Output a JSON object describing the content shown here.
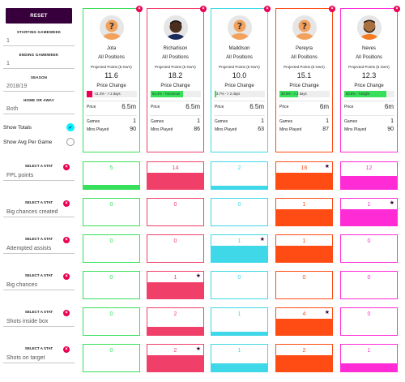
{
  "sidebar": {
    "reset_label": "RESET",
    "starting_gw_label": "STARTING GAMEWEEK",
    "starting_gw_value": "1",
    "ending_gw_label": "ENDING GAMEWEEK",
    "ending_gw_value": "1",
    "season_label": "SEASON",
    "season_value": "2018/19",
    "home_away_label": "HOME OR AWAY",
    "home_away_value": "Both",
    "show_totals_label": "Show Totals",
    "show_totals_checked": true,
    "show_avg_label": "Show Avg Per Game",
    "show_avg_checked": false
  },
  "labels": {
    "positions": "All Positions",
    "projected": "Projected Points (5 Gw's)",
    "price_change": "Price Change",
    "price": "Price",
    "games": "Games",
    "mins": "Mins Played",
    "select_stat": "SELECT A STAT"
  },
  "players": [
    {
      "name": "Jota",
      "pts": "11.6",
      "pc_text": "-11.4% - > 2 days",
      "pc_value": 11.4,
      "pc_color": "#e90052",
      "price": "6.5m",
      "games": "1",
      "mins": "90",
      "color": "#37e05a",
      "avatar": "placeholder"
    },
    {
      "name": "Richarlison",
      "pts": "18.2",
      "pc_text": "64.4% - Tomorrow",
      "pc_value": 64.4,
      "pc_color": "#37e05a",
      "price": "6.5m",
      "games": "1",
      "mins": "86",
      "color": "#f0406a",
      "avatar": "photo-dark"
    },
    {
      "name": "Maddison",
      "pts": "10.0",
      "pc_text": "3.7% - > 2 days",
      "pc_value": 3.7,
      "pc_color": "#37e05a",
      "price": "6.5m",
      "games": "1",
      "mins": "63",
      "color": "#3ed8e8",
      "avatar": "placeholder"
    },
    {
      "name": "Pereyra",
      "pts": "15.1",
      "pc_text": "36.6% - > 2 days",
      "pc_value": 36.6,
      "pc_color": "#37e05a",
      "price": "6m",
      "games": "1",
      "mins": "87",
      "color": "#ff4c14",
      "avatar": "placeholder"
    },
    {
      "name": "Neves",
      "pts": "12.3",
      "pc_text": "83.8% - Tonight",
      "pc_value": 83.8,
      "pc_color": "#37e05a",
      "price": "6m",
      "games": "1",
      "mins": "90",
      "color": "#ff2cd6",
      "avatar": "photo-beard"
    }
  ],
  "stats": [
    {
      "name": "FPL points",
      "values": [
        "5",
        "14",
        "2",
        "16",
        "12"
      ],
      "fills": [
        0.15,
        0.6,
        0.12,
        0.6,
        0.5
      ],
      "star": 3
    },
    {
      "name": "Big chances created",
      "values": [
        "0",
        "0",
        "0",
        "1",
        "1"
      ],
      "fills": [
        0,
        0,
        0,
        0.6,
        0.6
      ],
      "star": 4
    },
    {
      "name": "Attempted assists",
      "values": [
        "0",
        "0",
        "1",
        "1",
        "0"
      ],
      "fills": [
        0,
        0,
        0.6,
        0.6,
        0
      ],
      "star": 2
    },
    {
      "name": "Big chances",
      "values": [
        "0",
        "1",
        "0",
        "0",
        "0"
      ],
      "fills": [
        0,
        0.6,
        0,
        0,
        0
      ],
      "star": 1
    },
    {
      "name": "Shots inside box",
      "values": [
        "0",
        "2",
        "1",
        "4",
        "0"
      ],
      "fills": [
        0,
        0.3,
        0.12,
        0.6,
        0
      ],
      "star": 3
    },
    {
      "name": "Shots on target",
      "values": [
        "0",
        "2",
        "1",
        "2",
        "1"
      ],
      "fills": [
        0,
        0.6,
        0.3,
        0.6,
        0.3
      ],
      "star": 1
    }
  ]
}
